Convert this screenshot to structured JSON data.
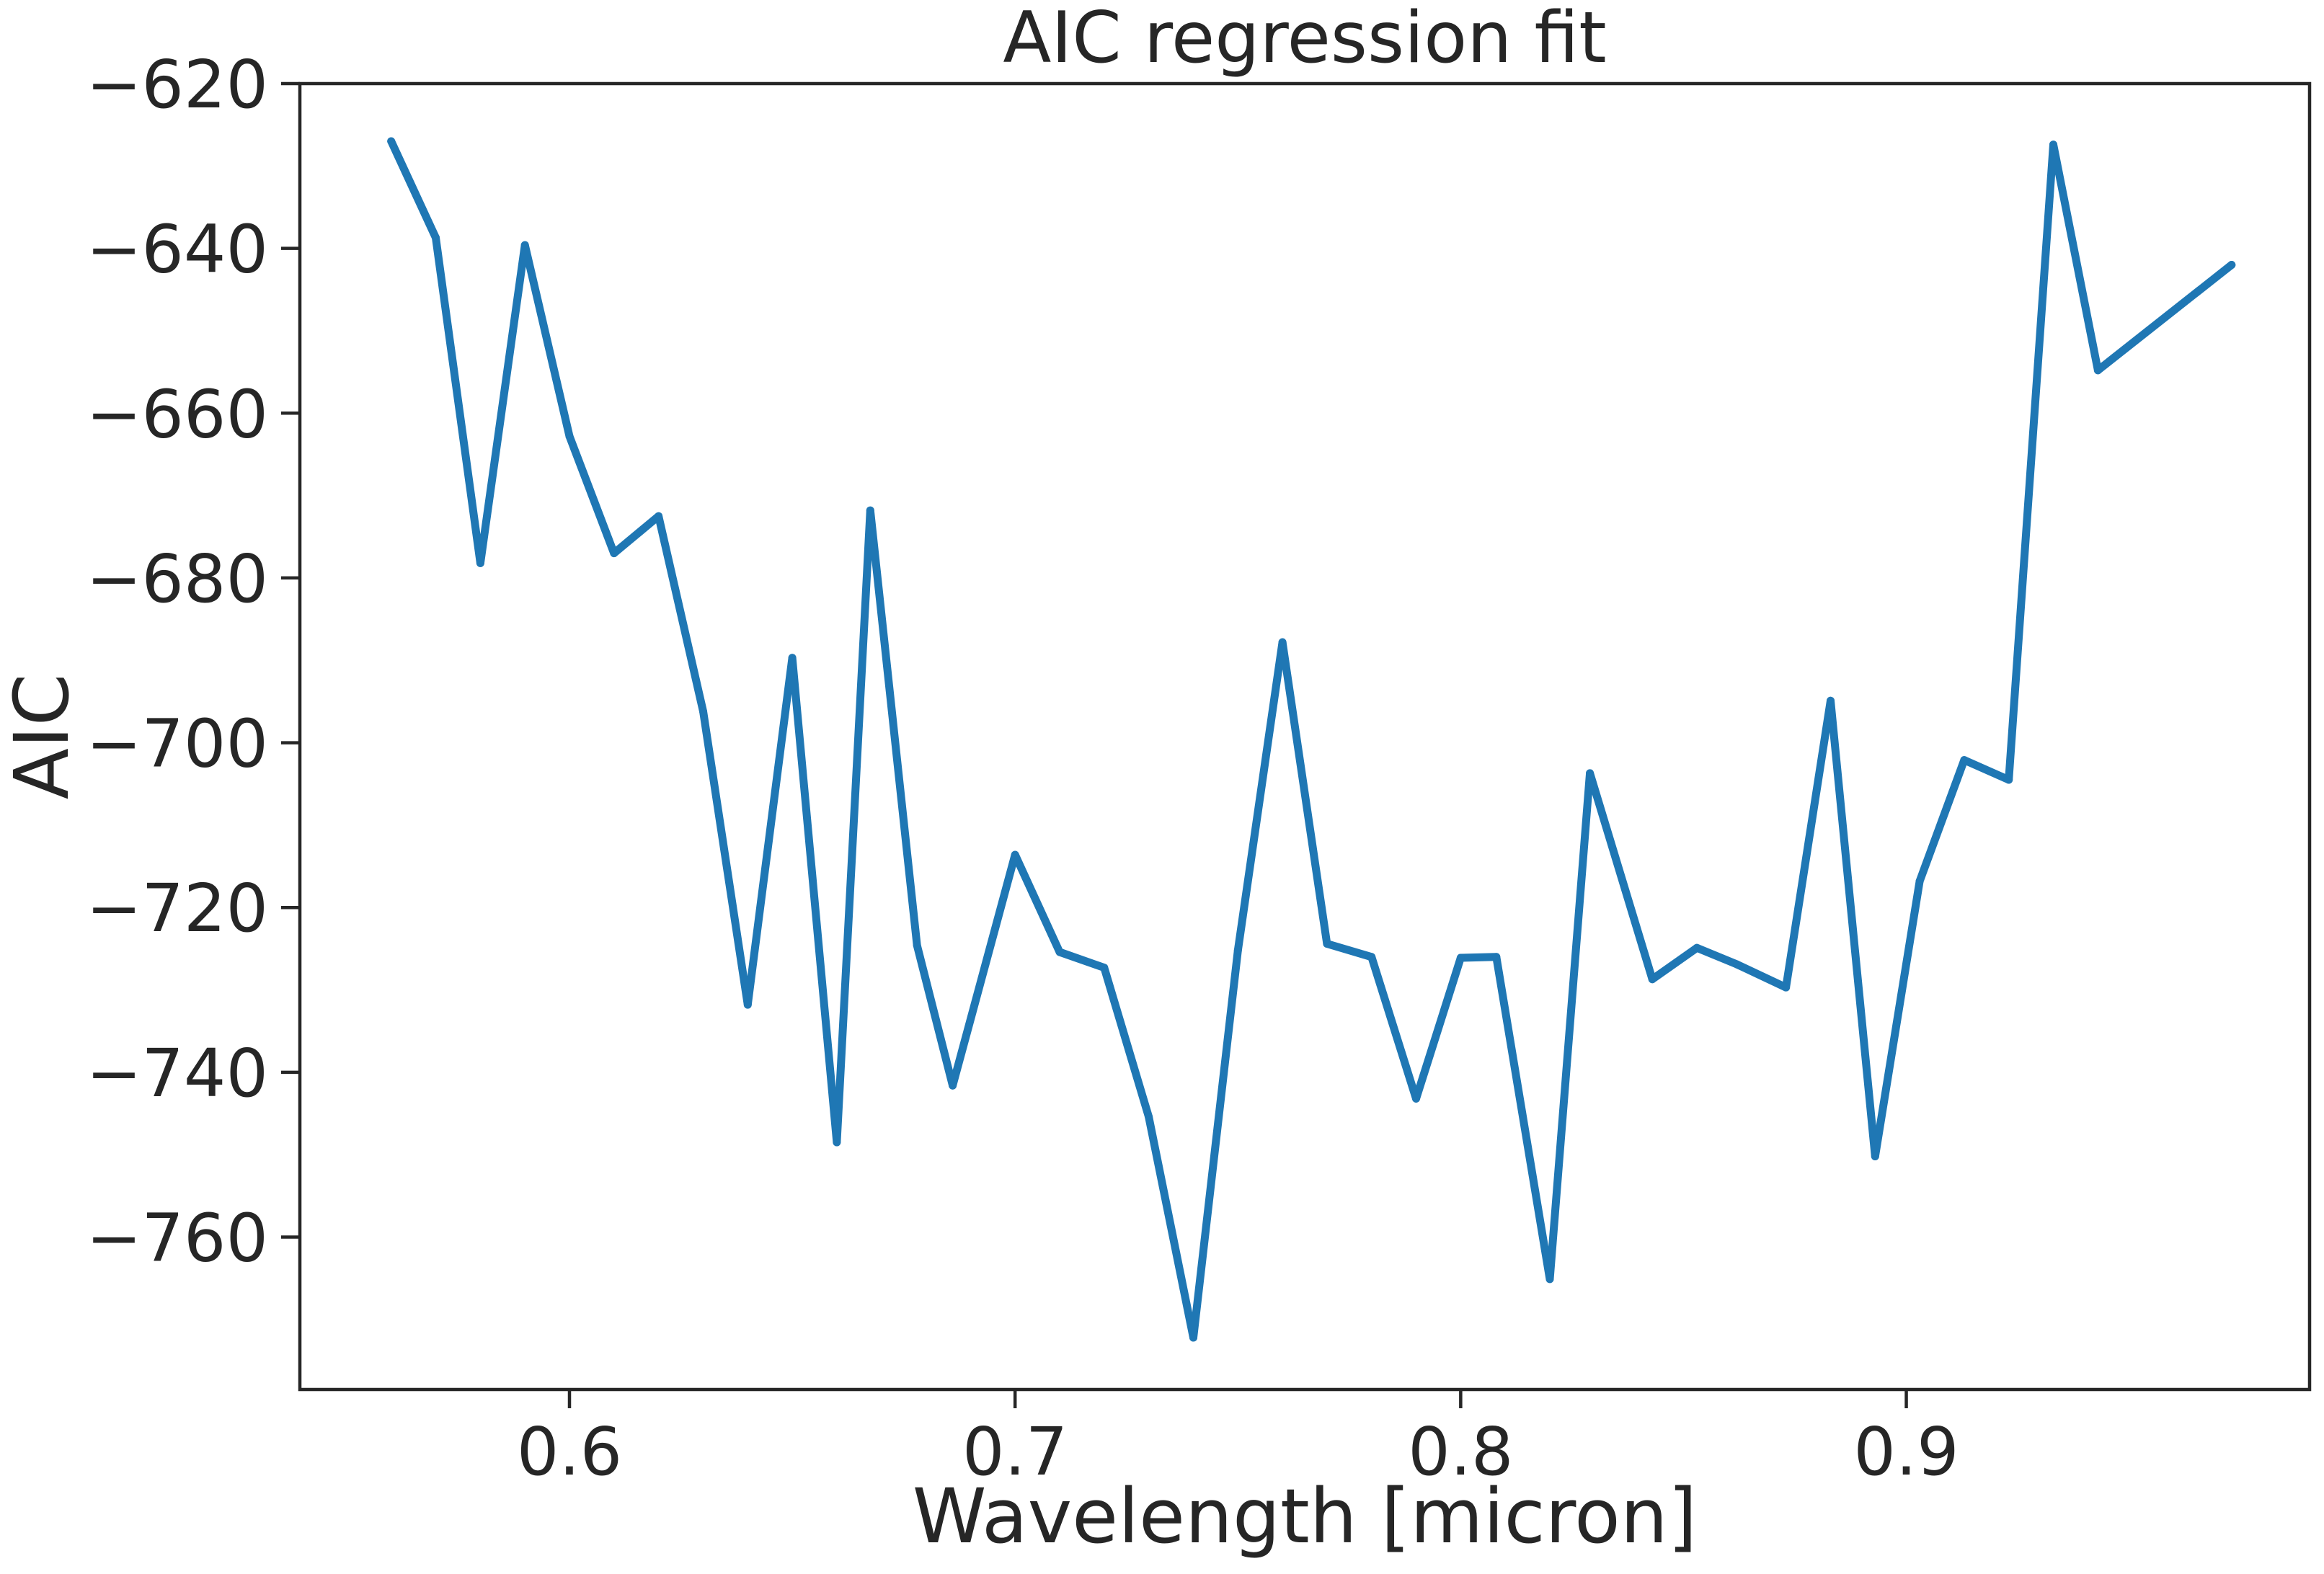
{
  "chart_data": {
    "type": "line",
    "title": "AIC regression fit",
    "xlabel": "Wavelength [micron]",
    "ylabel": "AIC",
    "xlim": [
      0.5395,
      0.9905
    ],
    "ylim": [
      -778.5,
      -620
    ],
    "xticks": [
      {
        "value": 0.6,
        "label": "0.6"
      },
      {
        "value": 0.7,
        "label": "0.7"
      },
      {
        "value": 0.8,
        "label": "0.8"
      },
      {
        "value": 0.9,
        "label": "0.9"
      }
    ],
    "yticks": [
      {
        "value": -620,
        "label": "−620"
      },
      {
        "value": -640,
        "label": "−640"
      },
      {
        "value": -660,
        "label": "−660"
      },
      {
        "value": -680,
        "label": "−680"
      },
      {
        "value": -700,
        "label": "−700"
      },
      {
        "value": -720,
        "label": "−720"
      },
      {
        "value": -740,
        "label": "−740"
      },
      {
        "value": -760,
        "label": "−760"
      }
    ],
    "grid": false,
    "color": "#1f77b4",
    "x": [
      0.56,
      0.57,
      0.58,
      0.59,
      0.6,
      0.61,
      0.62,
      0.63,
      0.64,
      0.65,
      0.66,
      0.6675,
      0.678,
      0.686,
      0.7,
      0.71,
      0.72,
      0.73,
      0.74,
      0.75,
      0.76,
      0.77,
      0.78,
      0.79,
      0.8,
      0.808,
      0.82,
      0.829,
      0.843,
      0.853,
      0.862,
      0.873,
      0.883,
      0.893,
      0.903,
      0.913,
      0.923,
      0.933,
      0.943,
      0.973
    ],
    "y": [
      -627.0,
      -638.7,
      -678.2,
      -639.6,
      -662.8,
      -677.0,
      -672.5,
      -696.2,
      -731.8,
      -689.7,
      -748.5,
      -671.8,
      -724.6,
      -741.6,
      -713.6,
      -725.4,
      -727.3,
      -745.4,
      -772.2,
      -725.2,
      -687.8,
      -724.4,
      -726.0,
      -743.2,
      -726.1,
      -726.0,
      -765.1,
      -703.7,
      -728.7,
      -724.9,
      -726.9,
      -729.7,
      -694.9,
      -750.2,
      -716.8,
      -702.1,
      -704.5,
      -627.4,
      -654.8,
      -642.0
    ]
  }
}
